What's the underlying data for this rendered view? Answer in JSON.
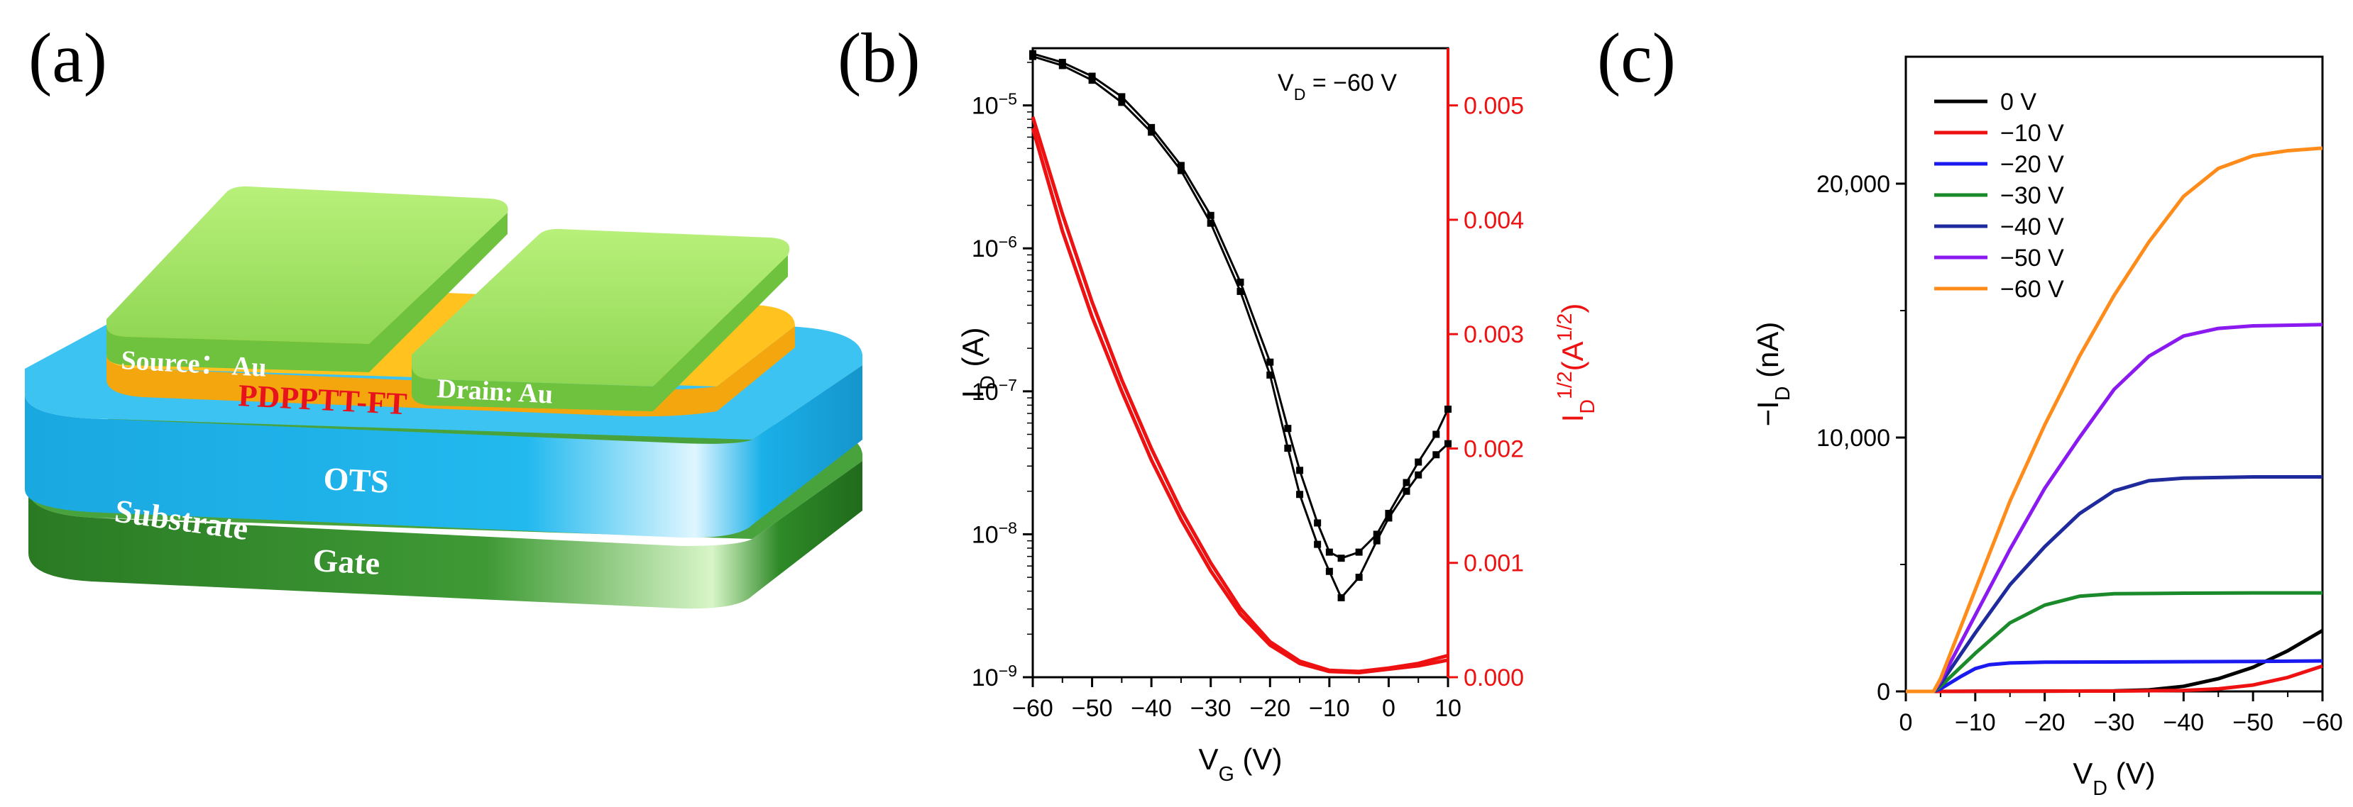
{
  "panel_labels": {
    "a": "(a)",
    "b": "(b)",
    "c": "(c)"
  },
  "device": {
    "source_label": "Source： Au",
    "drain_label": "Drain: Au",
    "semiconductor_label": "PDPPTT-FT",
    "dielectric_label": "OTS",
    "substrate_label": "Substrate",
    "gate_label": "Gate",
    "colors": {
      "electrode": "#a6e668",
      "semiconductor": "#ffb81a",
      "semiconductor_text": "#e8121c",
      "dielectric": "#19b6ec",
      "gate": "#2e8a27"
    }
  },
  "chart_data": [
    {
      "type": "line",
      "title": "",
      "annotation": "V_D = −60 V",
      "xlabel": "V_G (V)",
      "ylabel_left": "I_D (A)",
      "ylabel_right": "I_D^{1/2}(A^{1/2})",
      "xlim": [
        -60,
        10
      ],
      "xticks": [
        -60,
        -50,
        -40,
        -30,
        -20,
        -10,
        0,
        10
      ],
      "xtick_labels": [
        "−60",
        "−50",
        "−40",
        "−30",
        "−20",
        "−10",
        "0",
        "10"
      ],
      "ylim_left_log10": [
        -9,
        -4.6
      ],
      "yticks_left_exp": [
        -9,
        -8,
        -7,
        -6,
        -5
      ],
      "ylim_right": [
        0,
        0.0055
      ],
      "yticks_right": [
        "0.000",
        "0.001",
        "0.002",
        "0.003",
        "0.004",
        "0.005"
      ],
      "series": [
        {
          "name": "I_D forward",
          "axis": "left",
          "color": "#000000",
          "x": [
            -60,
            -55,
            -50,
            -45,
            -40,
            -35,
            -30,
            -25,
            -20,
            -17,
            -15,
            -12,
            -10,
            -8,
            -5,
            -2,
            0,
            3,
            5,
            8,
            10
          ],
          "y": [
            2.2e-05,
            1.9e-05,
            1.5e-05,
            1.05e-05,
            6.5e-06,
            3.5e-06,
            1.5e-06,
            5e-07,
            1.3e-07,
            4e-08,
            1.9e-08,
            8.5e-09,
            5.5e-09,
            3.6e-09,
            5e-09,
            9e-09,
            1.3e-08,
            2e-08,
            2.6e-08,
            3.6e-08,
            4.3e-08
          ]
        },
        {
          "name": "I_D reverse",
          "axis": "left",
          "color": "#000000",
          "x": [
            -60,
            -55,
            -50,
            -45,
            -40,
            -35,
            -30,
            -25,
            -20,
            -17,
            -15,
            -12,
            -10,
            -8,
            -5,
            -2,
            0,
            3,
            5,
            8,
            10
          ],
          "y": [
            2.3e-05,
            2e-05,
            1.6e-05,
            1.15e-05,
            7e-06,
            3.8e-06,
            1.7e-06,
            5.8e-07,
            1.6e-07,
            5.5e-08,
            2.8e-08,
            1.2e-08,
            7.5e-09,
            6.8e-09,
            7.5e-09,
            1e-08,
            1.4e-08,
            2.3e-08,
            3.2e-08,
            5e-08,
            7.5e-08
          ]
        },
        {
          "name": "I_D^1/2 forward",
          "axis": "right",
          "color": "#ee1111",
          "x": [
            -60,
            -55,
            -50,
            -45,
            -40,
            -35,
            -30,
            -25,
            -20,
            -15,
            -10,
            -5,
            0,
            5,
            10
          ],
          "y": [
            0.0048,
            0.0039,
            0.00315,
            0.0025,
            0.0019,
            0.00138,
            0.00093,
            0.00055,
            0.00028,
            0.00012,
            5e-05,
            4e-05,
            7e-05,
            0.0001,
            0.00015
          ]
        },
        {
          "name": "I_D^1/2 reverse",
          "axis": "right",
          "color": "#ee1111",
          "x": [
            -60,
            -55,
            -50,
            -45,
            -40,
            -35,
            -30,
            -25,
            -20,
            -15,
            -10,
            -5,
            0,
            5,
            10
          ],
          "y": [
            0.0049,
            0.00405,
            0.00328,
            0.0026,
            0.002,
            0.00146,
            0.001,
            0.0006,
            0.00031,
            0.00014,
            6e-05,
            5e-05,
            8e-05,
            0.00012,
            0.00019
          ]
        }
      ]
    },
    {
      "type": "line",
      "title": "",
      "xlabel": "V_D (V)",
      "ylabel": "−I_D (nA)",
      "xlim": [
        0,
        -60
      ],
      "xticks": [
        0,
        -10,
        -20,
        -30,
        -40,
        -50,
        -60
      ],
      "xtick_labels": [
        "0",
        "−10",
        "−20",
        "−30",
        "−40",
        "−50",
        "−60"
      ],
      "ylim": [
        0,
        25000
      ],
      "yticks": [
        0,
        10000,
        20000
      ],
      "ytick_labels": [
        "0",
        "10,000",
        "20,000"
      ],
      "legend_position": "top-left",
      "series": [
        {
          "name": "0 V",
          "color": "#000000",
          "x": [
            0,
            -5,
            -10,
            -20,
            -30,
            -35,
            -40,
            -45,
            -50,
            -55,
            -60
          ],
          "y": [
            0,
            0,
            5,
            10,
            20,
            60,
            200,
            500,
            950,
            1600,
            2400
          ]
        },
        {
          "name": "−10 V",
          "color": "#ee1111",
          "x": [
            0,
            -5,
            -10,
            -20,
            -30,
            -40,
            -45,
            -50,
            -55,
            -60
          ],
          "y": [
            0,
            0,
            5,
            10,
            15,
            40,
            100,
            250,
            550,
            1000
          ]
        },
        {
          "name": "−20 V",
          "color": "#1a1af0",
          "x": [
            0,
            -4,
            -5,
            -8,
            -10,
            -12,
            -15,
            -20,
            -30,
            -40,
            -50,
            -60
          ],
          "y": [
            0,
            0,
            100,
            600,
            900,
            1050,
            1120,
            1150,
            1160,
            1170,
            1180,
            1200
          ]
        },
        {
          "name": "−30 V",
          "color": "#1a8a2a",
          "x": [
            0,
            -4,
            -5,
            -10,
            -15,
            -20,
            -25,
            -30,
            -40,
            -50,
            -60
          ],
          "y": [
            0,
            0,
            200,
            1500,
            2700,
            3400,
            3750,
            3850,
            3870,
            3880,
            3880
          ]
        },
        {
          "name": "−40 V",
          "color": "#1f2a9c",
          "x": [
            0,
            -4,
            -5,
            -10,
            -15,
            -20,
            -25,
            -30,
            -35,
            -40,
            -50,
            -60
          ],
          "y": [
            0,
            0,
            300,
            2300,
            4200,
            5700,
            7000,
            7900,
            8300,
            8400,
            8450,
            8450
          ]
        },
        {
          "name": "−50 V",
          "color": "#8a1af0",
          "x": [
            0,
            -4,
            -5,
            -10,
            -15,
            -20,
            -25,
            -30,
            -35,
            -40,
            -45,
            -50,
            -60
          ],
          "y": [
            0,
            0,
            400,
            3000,
            5600,
            8000,
            10000,
            11900,
            13200,
            14000,
            14300,
            14400,
            14450
          ]
        },
        {
          "name": "−60 V",
          "color": "#ff8c1a",
          "x": [
            0,
            -4,
            -5,
            -10,
            -15,
            -20,
            -25,
            -30,
            -35,
            -40,
            -45,
            -50,
            -55,
            -60
          ],
          "y": [
            0,
            0,
            500,
            4000,
            7500,
            10500,
            13200,
            15600,
            17700,
            19500,
            20600,
            21100,
            21300,
            21400
          ]
        }
      ]
    }
  ]
}
